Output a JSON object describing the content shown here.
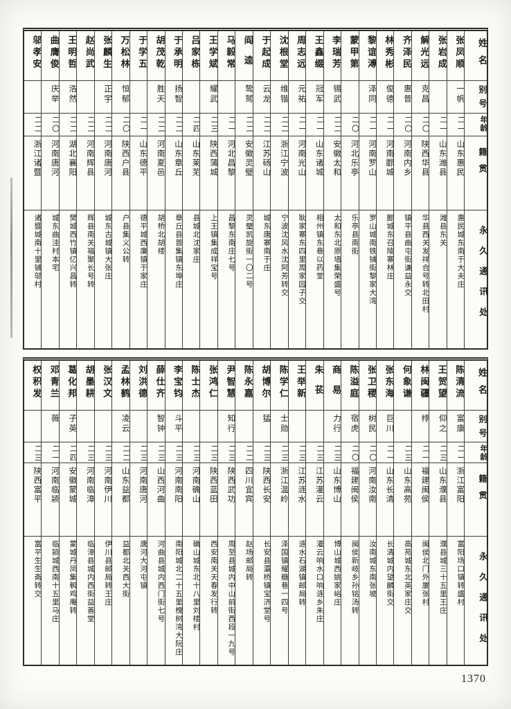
{
  "page": {
    "number": "1370"
  },
  "headers": {
    "name": "姓名",
    "alias": "别号",
    "age": "年龄",
    "native": "籍贯",
    "address": "永久通讯处"
  },
  "tables": [
    {
      "persons": [
        {
          "name": "张凤顺",
          "alias": "一帆",
          "age": "二一",
          "native": "山东惠民",
          "address": "惠民城东南于大夫庄"
        },
        {
          "name": "张岩成",
          "alias": "",
          "age": "二一",
          "native": "山东潍县",
          "address": "潍县东关"
        },
        {
          "name": "解光远",
          "alias": "克昌",
          "age": "二〇",
          "native": "陕西华县",
          "address": "华县西关发祥合号转北田村"
        },
        {
          "name": "齐泽民",
          "alias": "惠普",
          "age": "二〇",
          "native": "河南内乡",
          "address": "镇平县曲屯街谦益永交"
        },
        {
          "name": "林秀彬",
          "alias": "俊德",
          "age": "二一",
          "native": "河南郾城",
          "address": "郾城东召陵寨林庄"
        },
        {
          "name": "黎谊溥",
          "alias": "泽同",
          "age": "二一",
          "native": "河南罗山",
          "address": "罗山城南铁铺街黎家大湾"
        },
        {
          "name": "蒙甲第",
          "alias": "",
          "age": "二〇",
          "native": "河北乐亭",
          "address": "乐亭县南街"
        },
        {
          "name": "李瑞芳",
          "alias": "锡武",
          "age": "二二",
          "native": "安徽太和",
          "address": "太和东北原墙集荣盛号"
        },
        {
          "name": "王鑫缀",
          "alias": "冠军",
          "age": "二一",
          "native": "山东诸城",
          "address": "相州镇东巷以药堂"
        },
        {
          "name": "周志远",
          "alias": "元祐",
          "age": "二一",
          "native": "河南光山",
          "address": "耿家寨东四里周家园子交"
        },
        {
          "name": "沈根堂",
          "alias": "维锴",
          "age": "二二",
          "native": "浙江宁波",
          "address": "宁波沈风水沈阿芳转交"
        },
        {
          "name": "于起成",
          "alias": "云龙",
          "age": "二二",
          "native": "江苏砀山",
          "address": "城东唐寨南于庄"
        },
        {
          "name": "阎逵",
          "alias": "鸷鹫",
          "age": "二二",
          "native": "安徽灵璧",
          "address": "灵璧凯旋街一〇二号"
        },
        {
          "name": "马毅常",
          "alias": "",
          "age": "二一",
          "native": "河北昌黎",
          "address": "昌黎东南庄七号"
        },
        {
          "name": "王学斌",
          "alias": "耀武",
          "age": "二三",
          "native": "陕西蒲城",
          "address": "上王镇集成祥宝号"
        },
        {
          "name": "吕家栋",
          "alias": "",
          "age": "二四",
          "native": "山东莱芜",
          "address": "县城北沈家庄"
        },
        {
          "name": "于承明",
          "alias": "扬智",
          "age": "二二",
          "native": "山东章丘",
          "address": "章丘县普集镇东埠庄"
        },
        {
          "name": "胡茂乾",
          "alias": "胜天",
          "age": "二二",
          "native": "河南夏邑",
          "address": "胡桥北胡楼"
        },
        {
          "name": "于学五",
          "alias": "",
          "age": "二一",
          "native": "山东德平",
          "address": "德平城西廉镇于家庄"
        },
        {
          "name": "万松林",
          "alias": "恒郁",
          "age": "二〇",
          "native": "陕西户县",
          "address": "户县集义公转"
        },
        {
          "name": "张麟生",
          "alias": "正宇",
          "age": "二二",
          "native": "河南唐河",
          "address": "城东古城镇大张庄"
        },
        {
          "name": "赵尚武",
          "alias": "",
          "age": "二二",
          "native": "河南辉县",
          "address": "辉县南关福聚长号转"
        },
        {
          "name": "王明哲",
          "alias": "浩然",
          "age": "二二",
          "native": "湖北襄阳",
          "address": "樊城西竹镇亿兴昌转"
        },
        {
          "name": "曲膺俊",
          "alias": "庆举",
          "age": "二〇",
          "native": "河南唐河",
          "address": "城东曲洼村本宅"
        },
        {
          "name": "邬孝安",
          "alias": "",
          "age": "二二",
          "native": "浙江诸暨",
          "address": "诸暨城南十里铺邬村"
        }
      ]
    },
    {
      "persons": [
        {
          "name": "陈清流",
          "alias": "富康",
          "age": "二一",
          "native": "浙江富阳",
          "address": "富阳场口镇转盛村"
        },
        {
          "name": "王贺望",
          "alias": "仰之",
          "age": "二三",
          "native": "山东濮县",
          "address": "濮县城三十五里王庄"
        },
        {
          "name": "林闽疆",
          "alias": "桲",
          "age": "二一",
          "native": "福建闽侯",
          "address": "闽侯北门外厦张村"
        },
        {
          "name": "何象谦",
          "alias": "",
          "age": "二三",
          "native": "山东高苑",
          "address": "高苑城东北英家庄交"
        },
        {
          "name": "张东海",
          "alias": "巨川",
          "age": "二一",
          "native": "山东长清",
          "address": "长清城内望麟街交"
        },
        {
          "name": "张卫稷",
          "alias": "树民",
          "age": "二〇",
          "native": "河南汝南",
          "address": "汝南城东南张坡"
        },
        {
          "name": "陈溢庭",
          "alias": "宿虎",
          "age": "二〇",
          "native": "福建闽侯",
          "address": "闽侯新岐乡孙铭汤转"
        },
        {
          "name": "商易",
          "alias": "力行",
          "age": "二三",
          "native": "山东博山",
          "address": "博山城西姚家峪庄"
        },
        {
          "name": "朱苌",
          "alias": "",
          "age": "二三",
          "native": "江苏灌云",
          "address": "灌云响水口响涟乡朱庄"
        },
        {
          "name": "王举新",
          "alias": "",
          "age": "二三",
          "native": "江苏涟水",
          "address": "涟水石湖镇邮局转"
        },
        {
          "name": "陈学仁",
          "alias": "士勋",
          "age": "二三",
          "native": "浙江温岭",
          "address": "泽国镇耀糖巷一四号"
        },
        {
          "name": "胡博尔",
          "alias": "猛",
          "age": "二三",
          "native": "陕西长安",
          "address": "长安县灞桥镇宝济堂号"
        },
        {
          "name": "陈永嘉",
          "alias": "",
          "age": "二二",
          "native": "四川宜宾",
          "address": "赵场邮局转"
        },
        {
          "name": "尹智慧",
          "alias": "知行",
          "age": "二三",
          "native": "陕西武功",
          "address": "周至县城内中山前街西段一九号"
        },
        {
          "name": "张鸿仁",
          "alias": "",
          "age": "二三",
          "native": "陕西蓝田",
          "address": "西安南关天春发行转"
        },
        {
          "name": "陈士杰",
          "alias": "",
          "age": "二三",
          "native": "河南确山",
          "address": "确山城东北十八里刘楼村"
        },
        {
          "name": "李宝钧",
          "alias": "斗平",
          "age": "二三",
          "native": "河南南阳",
          "address": "南阳城北二十五里槐树湾大阮庄"
        },
        {
          "name": "薛仕齐",
          "alias": "智钟",
          "age": "二三",
          "native": "山西河曲",
          "address": "河曲县城内西门街七号"
        },
        {
          "name": "刘洪德",
          "alias": "",
          "age": "二三",
          "native": "河南唐河",
          "address": "唐河大河屯镇"
        },
        {
          "name": "孟林鹤",
          "alias": "凌云",
          "age": "二二",
          "native": "山东益都",
          "address": "益都北关西大街"
        },
        {
          "name": "张汉文",
          "alias": "",
          "age": "二三",
          "native": "河南伊川",
          "address": "伊川县邮局转王庄"
        },
        {
          "name": "胡墨耕",
          "alias": "",
          "age": "二三",
          "native": "河南临漳",
          "address": "临漳县城内西街益善堂"
        },
        {
          "name": "葛化邦",
          "alias": "子英",
          "age": "二四",
          "native": "安徽蒙城",
          "address": "蒙城丹凤集鹌鸡庵转"
        },
        {
          "name": "邓青兰",
          "alias": "薇",
          "age": "二一",
          "native": "河南临颍",
          "address": "临颍城西南十五里马庄"
        },
        {
          "name": "权积发",
          "alias": "",
          "age": "二三",
          "native": "陕西富平",
          "address": "富平生生斋转交"
        }
      ]
    }
  ]
}
